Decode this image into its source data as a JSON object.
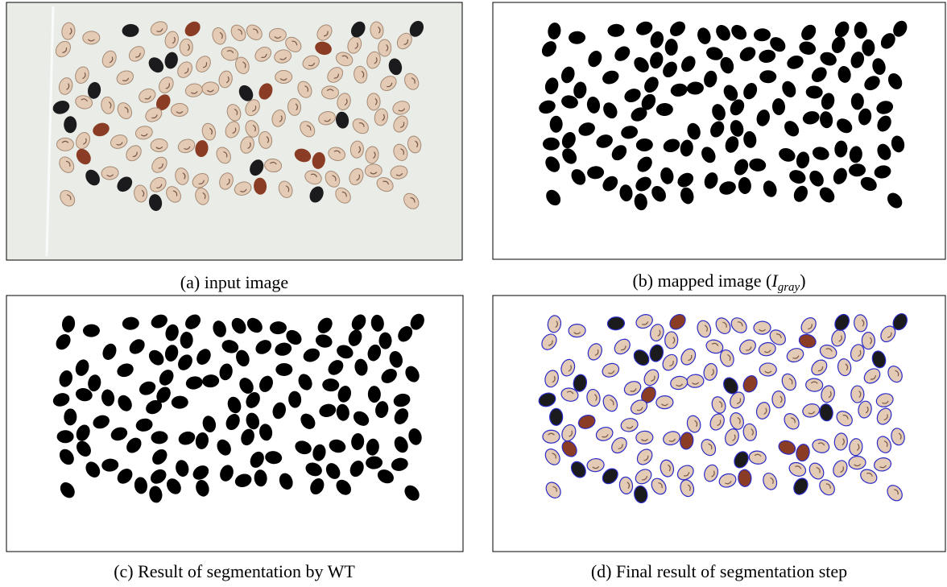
{
  "figure": {
    "captions": {
      "a": "(a) input image",
      "b": {
        "text": "(b) mapped image (",
        "symbol": "I",
        "subscript": "gray",
        "close": ")"
      },
      "c": "(c) Result of segmentation by WT",
      "d": "(d) Final result of segmentation step"
    }
  }
}
